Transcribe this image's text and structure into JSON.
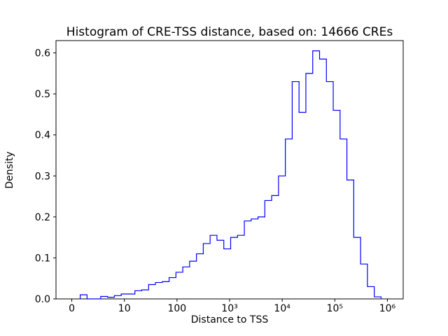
{
  "figure": {
    "title": "Histogram of CRE-TSS distance, based on: 14666 CREs",
    "xlabel": "Distance to TSS",
    "ylabel": "Density"
  },
  "chart_data": {
    "type": "histogram-step",
    "title": "Histogram of CRE-TSS distance, based on: 14666 CREs",
    "xlabel": "Distance to TSS",
    "ylabel": "Density",
    "n_cres": 14666,
    "x_scale": "symlog (ticks 0, 10, 100, 1e3, 1e4, 1e5, 1e6 evenly spaced)",
    "grid": false,
    "legend": false,
    "line_color": "#0000ff",
    "axis_color": "#000000",
    "background_color": "#ffffff",
    "xlim_axis_units": [
      -0.3,
      6.3
    ],
    "ylim": [
      0,
      0.63
    ],
    "x_ticks": [
      {
        "pos": 0,
        "label": "0"
      },
      {
        "pos": 1,
        "label": "10"
      },
      {
        "pos": 2,
        "label": "100"
      },
      {
        "pos": 3,
        "label": "10³"
      },
      {
        "pos": 4,
        "label": "10⁴"
      },
      {
        "pos": 5,
        "label": "10⁵"
      },
      {
        "pos": 6,
        "label": "10⁶"
      }
    ],
    "y_ticks": [
      {
        "value": 0.0,
        "label": "0.0"
      },
      {
        "value": 0.1,
        "label": "0.1"
      },
      {
        "value": 0.2,
        "label": "0.2"
      },
      {
        "value": 0.3,
        "label": "0.3"
      },
      {
        "value": 0.4,
        "label": "0.4"
      },
      {
        "value": 0.5,
        "label": "0.5"
      },
      {
        "value": 0.6,
        "label": "0.6"
      }
    ],
    "bin_edges_axis_units": [
      0.16,
      0.29,
      0.42,
      0.55,
      0.68,
      0.81,
      0.94,
      1.07,
      1.2,
      1.33,
      1.46,
      1.59,
      1.72,
      1.85,
      1.98,
      2.11,
      2.24,
      2.37,
      2.5,
      2.63,
      2.76,
      2.89,
      3.02,
      3.15,
      3.28,
      3.41,
      3.54,
      3.67,
      3.8,
      3.93,
      4.06,
      4.19,
      4.32,
      4.45,
      4.58,
      4.71,
      4.84,
      4.97,
      5.1,
      5.23,
      5.36,
      5.49,
      5.62,
      5.75,
      5.88
    ],
    "densities": [
      0.01,
      0.0,
      0.0,
      0.006,
      0.004,
      0.008,
      0.012,
      0.012,
      0.02,
      0.022,
      0.035,
      0.04,
      0.042,
      0.052,
      0.065,
      0.078,
      0.092,
      0.11,
      0.135,
      0.155,
      0.143,
      0.122,
      0.15,
      0.155,
      0.19,
      0.195,
      0.2,
      0.24,
      0.252,
      0.3,
      0.39,
      0.53,
      0.455,
      0.55,
      0.605,
      0.585,
      0.53,
      0.46,
      0.39,
      0.29,
      0.15,
      0.085,
      0.03,
      0.005
    ]
  }
}
